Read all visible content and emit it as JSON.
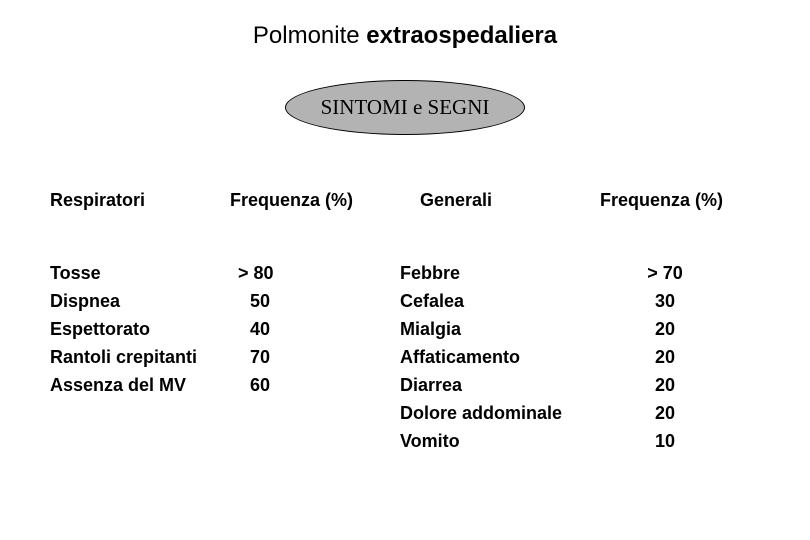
{
  "title": {
    "part1": "Polmonite ",
    "part2": "extraospedaliera"
  },
  "badge": "SINTOMI e SEGNI",
  "headers": {
    "col1": "Respiratori",
    "col2": "Frequenza (%)",
    "col3": "Generali",
    "col4": "Frequenza (%)"
  },
  "left": {
    "symptoms": [
      "Tosse",
      "Dispnea",
      "Espettorato",
      "Rantoli crepitanti",
      "Assenza del MV"
    ],
    "freq": [
      "> 80",
      "50",
      "40",
      "70",
      "60"
    ]
  },
  "right": {
    "symptoms": [
      "Febbre",
      "Cefalea",
      "Mialgia",
      "Affaticamento",
      "Diarrea",
      "Dolore addominale",
      "Vomito"
    ],
    "freq": [
      "> 70",
      "30",
      "20",
      "20",
      "20",
      "20",
      "10"
    ]
  }
}
